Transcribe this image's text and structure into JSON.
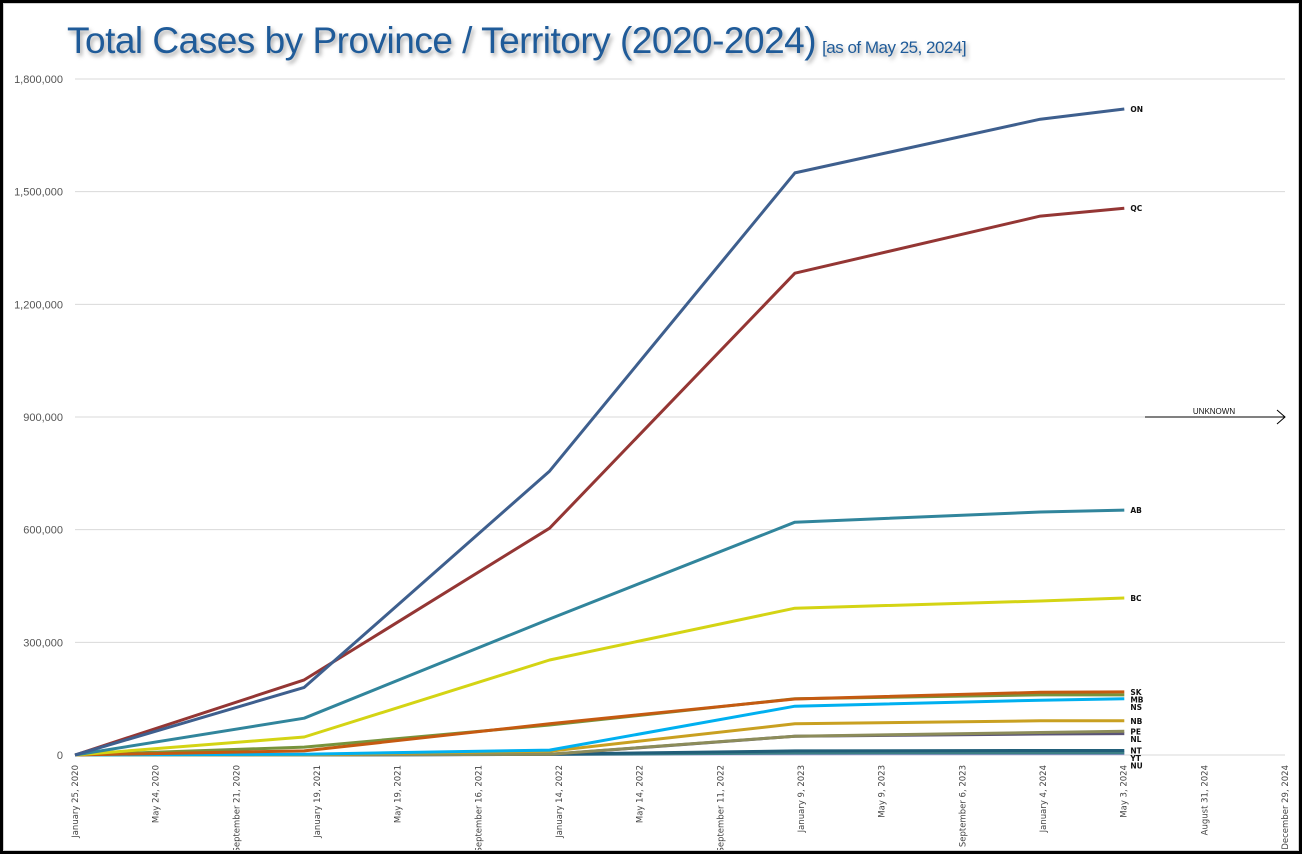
{
  "chart_data": {
    "type": "line",
    "title": "Total Cases by Province / Territory (2020-2024)",
    "subtitle": "[as of May 25, 2024]",
    "xlabel": "",
    "ylabel": "",
    "ylim": [
      0,
      1800000
    ],
    "xlim": [
      "2020-01-25",
      "2024-12-29"
    ],
    "grid": true,
    "legend": "end-of-line labels (right)",
    "y_ticks": [
      "0",
      "300,000",
      "600,000",
      "900,000",
      "1,200,000",
      "1,500,000",
      "1,800,000"
    ],
    "x_ticks": [
      "January 25, 2020",
      "May 24, 2020",
      "September 21, 2020",
      "January 19, 2021",
      "May 19, 2021",
      "September 16, 2021",
      "January 14, 2022",
      "May 14, 2022",
      "September 11, 2022",
      "January 9, 2023",
      "May 9, 2023",
      "September 6, 2023",
      "January 4, 2024",
      "May 3, 2024",
      "August 31, 2024",
      "December 29, 2024"
    ],
    "x": [
      "2020-01-25",
      "2020-12-31",
      "2021-12-31",
      "2022-12-31",
      "2023-12-31",
      "2024-05-04"
    ],
    "series": [
      {
        "name": "ON",
        "color": "#3e5f8e",
        "values": [
          0,
          180000,
          756000,
          1550000,
          1693000,
          1720000
        ]
      },
      {
        "name": "QC",
        "color": "#943634",
        "values": [
          0,
          200000,
          604000,
          1283000,
          1435000,
          1456000
        ]
      },
      {
        "name": "AB",
        "color": "#31859c",
        "values": [
          0,
          98000,
          362000,
          620000,
          647000,
          652000
        ]
      },
      {
        "name": "BC",
        "color": "#d4d414",
        "values": [
          0,
          48000,
          253000,
          391000,
          410000,
          418000
        ]
      },
      {
        "name": "SK",
        "color": "#c55a11",
        "values": [
          0,
          11000,
          83000,
          149000,
          167000,
          168000
        ]
      },
      {
        "name": "MB",
        "color": "#77933c",
        "values": [
          0,
          21000,
          80000,
          150000,
          160000,
          160000
        ]
      },
      {
        "name": "NS",
        "color": "#00b0f0",
        "values": [
          0,
          2000,
          13000,
          130000,
          146000,
          150000
        ]
      },
      {
        "name": "NB",
        "color": "#c9a021",
        "values": [
          0,
          1000,
          10000,
          83000,
          91000,
          91000
        ]
      },
      {
        "name": "PE",
        "color": "#8c8c5a",
        "values": [
          0,
          100,
          2000,
          50000,
          60000,
          63000
        ]
      },
      {
        "name": "NL",
        "color": "#5b5577",
        "values": [
          0,
          400,
          1500,
          50000,
          56000,
          57000
        ]
      },
      {
        "name": "NT",
        "color": "#215e79",
        "values": [
          0,
          50,
          2000,
          11000,
          12000,
          12000
        ]
      },
      {
        "name": "YT",
        "color": "#3c7f86",
        "values": [
          0,
          70,
          1500,
          5000,
          5200,
          5300
        ]
      },
      {
        "name": "NU",
        "color": "#b49be6",
        "values": [
          0,
          300,
          1500,
          3500,
          3600,
          3600
        ]
      }
    ],
    "annotations": [
      {
        "text": "UNKNOWN",
        "value": 900000,
        "icon": "arrow-right-icon"
      }
    ]
  }
}
